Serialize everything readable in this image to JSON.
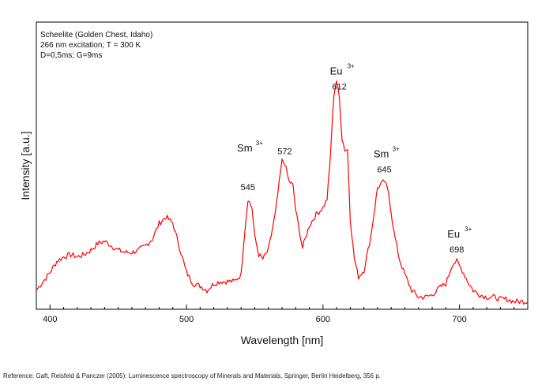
{
  "chart_data": {
    "type": "line",
    "sample_info": [
      "Scheelite (Golden Chest, Idaho)",
      "266 nm excitation; T = 300 K",
      "D=0,5ms; G=9ms"
    ],
    "xlabel": "Wavelength [nm]",
    "ylabel": "Intensity [a.u.]",
    "xlim": [
      390,
      750
    ],
    "ylim": [
      0,
      1
    ],
    "x_ticks": [
      400,
      500,
      600,
      700
    ],
    "y_ticks_labeled": false,
    "grid": false,
    "series": [
      {
        "color": "#ff0000",
        "x": [
          390,
          395,
          400,
          405,
          410,
          415,
          420,
          425,
          430,
          435,
          440,
          445,
          450,
          455,
          460,
          465,
          470,
          475,
          480,
          485,
          490,
          495,
          500,
          505,
          510,
          515,
          520,
          525,
          530,
          535,
          540,
          542,
          545,
          548,
          550,
          553,
          556,
          560,
          565,
          570,
          572,
          575,
          578,
          580,
          585,
          590,
          595,
          600,
          603,
          605,
          608,
          610,
          612,
          614,
          616,
          618,
          620,
          623,
          626,
          630,
          635,
          640,
          645,
          648,
          652,
          656,
          660,
          665,
          670,
          675,
          680,
          685,
          690,
          695,
          698,
          702,
          706,
          710,
          715,
          720,
          725,
          730,
          735,
          740,
          745,
          750
        ],
        "values": [
          0.06,
          0.1,
          0.14,
          0.19,
          0.21,
          0.22,
          0.21,
          0.22,
          0.24,
          0.27,
          0.28,
          0.26,
          0.24,
          0.23,
          0.23,
          0.24,
          0.26,
          0.29,
          0.36,
          0.39,
          0.36,
          0.25,
          0.14,
          0.09,
          0.08,
          0.06,
          0.09,
          0.1,
          0.1,
          0.1,
          0.13,
          0.28,
          0.47,
          0.43,
          0.3,
          0.22,
          0.2,
          0.24,
          0.4,
          0.64,
          0.63,
          0.55,
          0.53,
          0.42,
          0.25,
          0.35,
          0.4,
          0.43,
          0.47,
          0.62,
          0.94,
          1.0,
          0.92,
          0.74,
          0.69,
          0.69,
          0.38,
          0.2,
          0.12,
          0.15,
          0.3,
          0.52,
          0.55,
          0.5,
          0.32,
          0.2,
          0.13,
          0.06,
          0.03,
          0.03,
          0.04,
          0.07,
          0.09,
          0.18,
          0.19,
          0.15,
          0.1,
          0.06,
          0.04,
          0.03,
          0.03,
          0.02,
          0.02,
          0.01,
          0.01,
          0.01
        ]
      }
    ],
    "annotations": [
      {
        "ion": "Sm",
        "superscript": "3+",
        "wavelength": "545",
        "x": 545
      },
      {
        "wavelength": "572",
        "x": 572
      },
      {
        "ion": "Eu",
        "superscript": "3+",
        "wavelength": "612",
        "x": 612
      },
      {
        "ion": "Sm",
        "superscript": "3+",
        "wavelength": "645",
        "x": 645
      },
      {
        "ion": "Eu",
        "superscript": "3+",
        "wavelength": "698",
        "x": 698
      }
    ]
  },
  "reference": "Reference: Gaft, Reisfeld & Panczer (2005): Luminescence spectroscopy of Minerals and Materials, Springer, Berlin Heidelberg, 356 p."
}
